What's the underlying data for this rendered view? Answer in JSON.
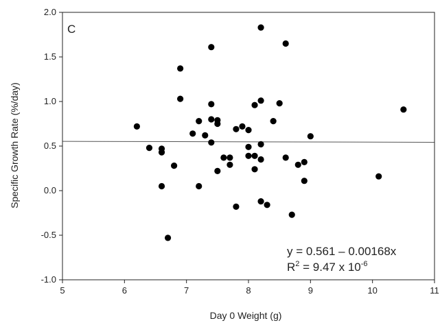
{
  "chart_data": {
    "type": "scatter",
    "panel_label": "C",
    "xlabel": "Day 0 Weight (g)",
    "ylabel": "Specific Growth Rate (%/day)",
    "xlim": [
      5,
      11
    ],
    "ylim": [
      -1.0,
      2.0
    ],
    "x_ticks": [
      5,
      6,
      7,
      8,
      9,
      10,
      11
    ],
    "y_ticks": [
      -1.0,
      -0.5,
      0.0,
      0.5,
      1.0,
      1.5,
      2.0
    ],
    "y_tick_labels": [
      "-1.0",
      "-0.5",
      "0.0",
      "0.5",
      "1.0",
      "1.5",
      "2.0"
    ],
    "grid": false,
    "points": [
      {
        "x": 6.2,
        "y": 0.72
      },
      {
        "x": 6.4,
        "y": 0.48
      },
      {
        "x": 6.6,
        "y": 0.47
      },
      {
        "x": 6.6,
        "y": 0.43
      },
      {
        "x": 6.6,
        "y": 0.05
      },
      {
        "x": 6.7,
        "y": -0.53
      },
      {
        "x": 6.8,
        "y": 0.28
      },
      {
        "x": 6.9,
        "y": 1.37
      },
      {
        "x": 6.9,
        "y": 1.03
      },
      {
        "x": 7.1,
        "y": 0.64
      },
      {
        "x": 7.2,
        "y": 0.78
      },
      {
        "x": 7.2,
        "y": 0.05
      },
      {
        "x": 7.3,
        "y": 0.62
      },
      {
        "x": 7.4,
        "y": 1.61
      },
      {
        "x": 7.4,
        "y": 0.97
      },
      {
        "x": 7.4,
        "y": 0.8
      },
      {
        "x": 7.4,
        "y": 0.54
      },
      {
        "x": 7.5,
        "y": 0.79
      },
      {
        "x": 7.5,
        "y": 0.75
      },
      {
        "x": 7.5,
        "y": 0.22
      },
      {
        "x": 7.6,
        "y": 0.37
      },
      {
        "x": 7.7,
        "y": 0.37
      },
      {
        "x": 7.7,
        "y": 0.29
      },
      {
        "x": 7.8,
        "y": 0.69
      },
      {
        "x": 7.8,
        "y": -0.18
      },
      {
        "x": 7.9,
        "y": 0.72
      },
      {
        "x": 8.0,
        "y": 0.68
      },
      {
        "x": 8.0,
        "y": 0.49
      },
      {
        "x": 8.0,
        "y": 0.39
      },
      {
        "x": 8.1,
        "y": 0.96
      },
      {
        "x": 8.1,
        "y": 0.39
      },
      {
        "x": 8.1,
        "y": 0.24
      },
      {
        "x": 8.2,
        "y": 1.83
      },
      {
        "x": 8.2,
        "y": 1.01
      },
      {
        "x": 8.2,
        "y": 0.52
      },
      {
        "x": 8.2,
        "y": 0.35
      },
      {
        "x": 8.2,
        "y": -0.12
      },
      {
        "x": 8.3,
        "y": -0.16
      },
      {
        "x": 8.4,
        "y": 0.78
      },
      {
        "x": 8.5,
        "y": 0.98
      },
      {
        "x": 8.6,
        "y": 1.65
      },
      {
        "x": 8.6,
        "y": 0.37
      },
      {
        "x": 8.7,
        "y": -0.27
      },
      {
        "x": 8.8,
        "y": 0.29
      },
      {
        "x": 8.9,
        "y": 0.32
      },
      {
        "x": 8.9,
        "y": 0.11
      },
      {
        "x": 9.0,
        "y": 0.61
      },
      {
        "x": 10.1,
        "y": 0.16
      },
      {
        "x": 10.5,
        "y": 0.91
      }
    ],
    "regression": {
      "intercept": 0.561,
      "slope": -0.00168,
      "equation_text": "y = 0.561 – 0.00168x",
      "r2_prefix": "R",
      "r2_sup": "2",
      "r2_value_text": " = 9.47 x 10",
      "r2_exponent": "-6"
    },
    "colors": {
      "marker": "#000000",
      "line": "#555555",
      "axis": "#222222"
    }
  }
}
